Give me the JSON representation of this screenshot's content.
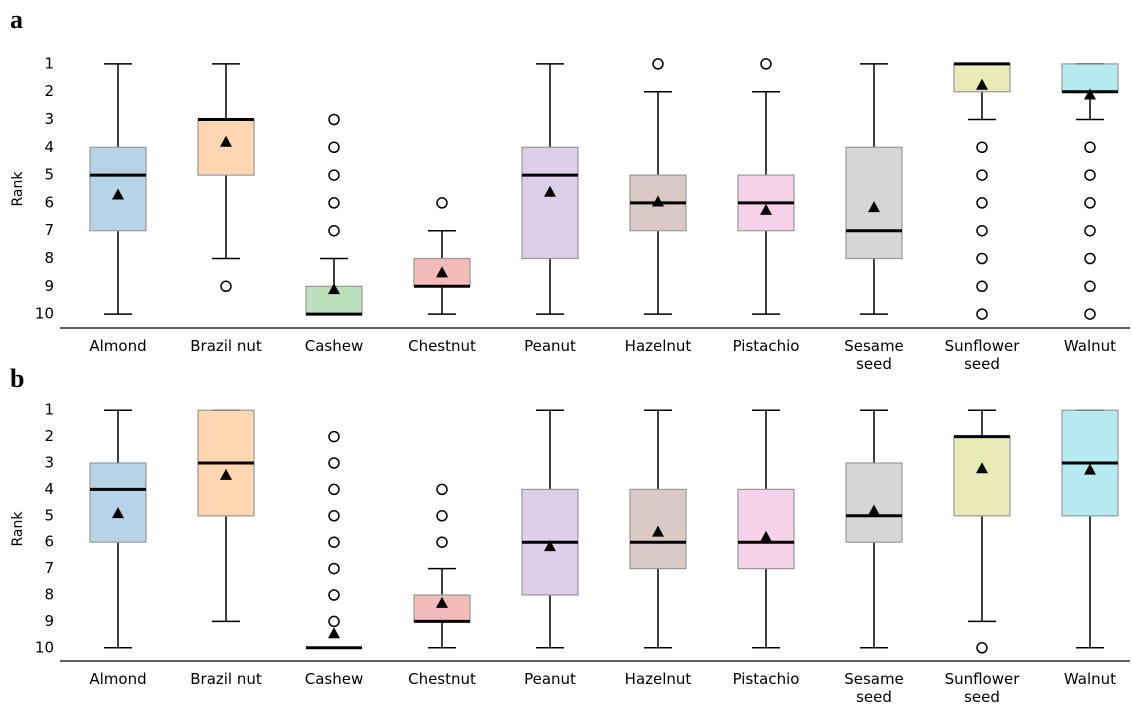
{
  "chart_data": [
    {
      "type": "box",
      "panel": "a",
      "ylabel": "Rank",
      "categories": [
        "Almond",
        "Brazil nut",
        "Cashew",
        "Chestnut",
        "Peanut",
        "Hazelnut",
        "Pistachio",
        "Sesame\nseed",
        "Sunflower\nseed",
        "Walnut"
      ],
      "colors": [
        "#1f77b4",
        "#ff7f0e",
        "#2ca02c",
        "#d62728",
        "#9467bd",
        "#8c564b",
        "#e377c2",
        "#7f7f7f",
        "#bcbd22",
        "#17becf"
      ],
      "ylim": [
        10.5,
        0.5
      ],
      "yticks": [
        1,
        2,
        3,
        4,
        5,
        6,
        7,
        8,
        9,
        10
      ],
      "inverted": true,
      "boxes": [
        {
          "min": 1,
          "q1": 4,
          "median": 5,
          "q3": 7,
          "max": 10,
          "mean": 5.7,
          "outliers": []
        },
        {
          "min": 1,
          "q1": 3,
          "median": 3,
          "q3": 5,
          "max": 8,
          "mean": 3.8,
          "outliers": [
            9
          ]
        },
        {
          "min": 8,
          "q1": 9,
          "median": 10,
          "q3": 10,
          "max": 10,
          "mean": 9.1,
          "outliers": [
            3,
            4,
            5,
            6,
            7
          ]
        },
        {
          "min": 7,
          "q1": 8,
          "median": 9,
          "q3": 9,
          "max": 10,
          "mean": 8.5,
          "outliers": [
            6
          ]
        },
        {
          "min": 1,
          "q1": 4,
          "median": 5,
          "q3": 8,
          "max": 10,
          "mean": 5.6,
          "outliers": []
        },
        {
          "min": 2,
          "q1": 5,
          "median": 6,
          "q3": 7,
          "max": 10,
          "mean": 5.95,
          "outliers": [
            1
          ]
        },
        {
          "min": 2,
          "q1": 5,
          "median": 6,
          "q3": 7,
          "max": 10,
          "mean": 6.25,
          "outliers": [
            1
          ]
        },
        {
          "min": 1,
          "q1": 4,
          "median": 7,
          "q3": 8,
          "max": 10,
          "mean": 6.15,
          "outliers": []
        },
        {
          "min": 1,
          "q1": 1,
          "median": 1,
          "q3": 2,
          "max": 3,
          "mean": 1.75,
          "outliers": [
            4,
            5,
            6,
            7,
            8,
            9,
            10
          ]
        },
        {
          "min": 1,
          "q1": 1,
          "median": 2,
          "q3": 2,
          "max": 3,
          "mean": 2.1,
          "outliers": [
            4,
            5,
            6,
            7,
            8,
            9,
            10
          ]
        }
      ]
    },
    {
      "type": "box",
      "panel": "b",
      "ylabel": "Rank",
      "categories": [
        "Almond",
        "Brazil nut",
        "Cashew",
        "Chestnut",
        "Peanut",
        "Hazelnut",
        "Pistachio",
        "Sesame\nseed",
        "Sunflower\nseed",
        "Walnut"
      ],
      "colors": [
        "#1f77b4",
        "#ff7f0e",
        "#2ca02c",
        "#d62728",
        "#9467bd",
        "#8c564b",
        "#e377c2",
        "#7f7f7f",
        "#bcbd22",
        "#17becf"
      ],
      "ylim": [
        10.5,
        0.5
      ],
      "yticks": [
        1,
        2,
        3,
        4,
        5,
        6,
        7,
        8,
        9,
        10
      ],
      "inverted": true,
      "boxes": [
        {
          "min": 1,
          "q1": 3,
          "median": 4,
          "q3": 6,
          "max": 10,
          "mean": 4.9,
          "outliers": []
        },
        {
          "min": 1,
          "q1": 1,
          "median": 3,
          "q3": 5,
          "max": 9,
          "mean": 3.45,
          "outliers": []
        },
        {
          "min": 10,
          "q1": 10,
          "median": 10,
          "q3": 10,
          "max": 10,
          "mean": 9.45,
          "outliers": [
            2,
            3,
            4,
            5,
            6,
            7,
            8,
            9
          ]
        },
        {
          "min": 7,
          "q1": 8,
          "median": 9,
          "q3": 9,
          "max": 10,
          "mean": 8.3,
          "outliers": [
            4,
            5,
            6
          ]
        },
        {
          "min": 1,
          "q1": 4,
          "median": 6,
          "q3": 8,
          "max": 10,
          "mean": 6.15,
          "outliers": []
        },
        {
          "min": 1,
          "q1": 4,
          "median": 6,
          "q3": 7,
          "max": 10,
          "mean": 5.6,
          "outliers": []
        },
        {
          "min": 1,
          "q1": 4,
          "median": 6,
          "q3": 7,
          "max": 10,
          "mean": 5.8,
          "outliers": []
        },
        {
          "min": 1,
          "q1": 3,
          "median": 5,
          "q3": 6,
          "max": 10,
          "mean": 4.8,
          "outliers": []
        },
        {
          "min": 1,
          "q1": 2,
          "median": 2,
          "q3": 5,
          "max": 9,
          "mean": 3.2,
          "outliers": [
            10
          ]
        },
        {
          "min": 1,
          "q1": 1,
          "median": 3,
          "q3": 5,
          "max": 10,
          "mean": 3.25,
          "outliers": []
        }
      ]
    }
  ]
}
